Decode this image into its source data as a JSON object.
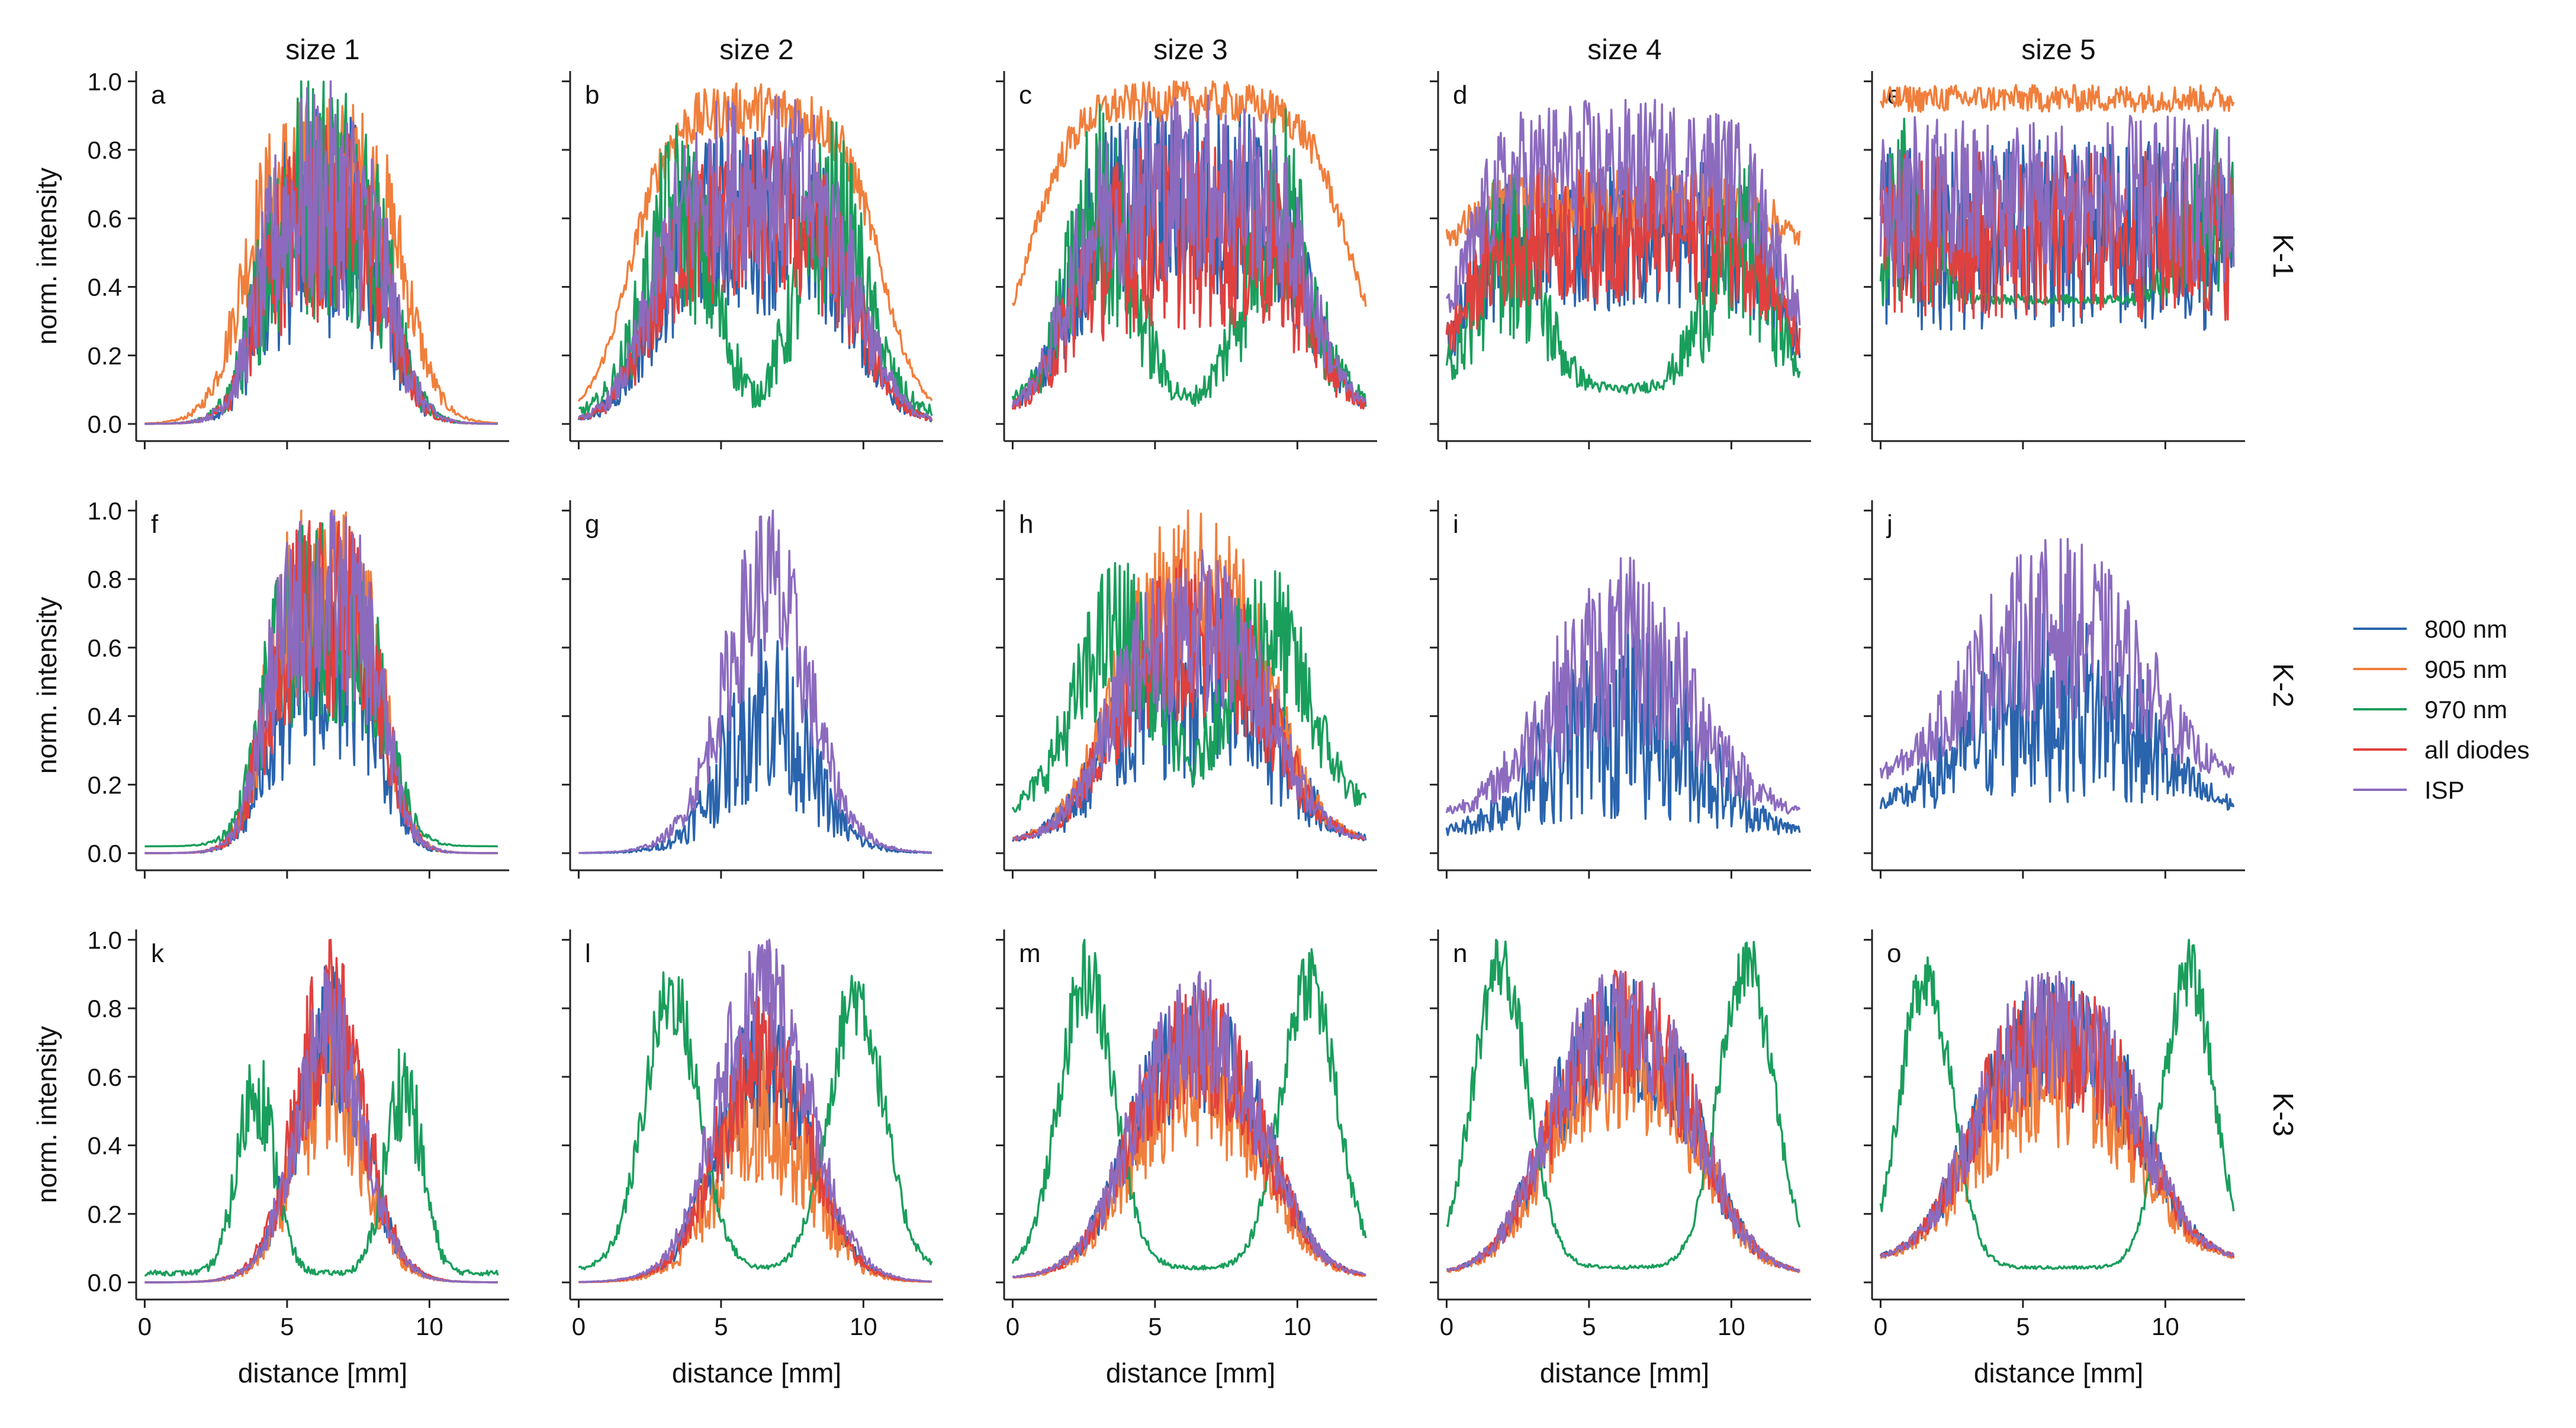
{
  "chart_data": {
    "type": "line",
    "layout": "3x5 grid of small multiples",
    "column_titles": [
      "size 1",
      "size 2",
      "size 3",
      "size 4",
      "size 5"
    ],
    "row_titles": [
      "K-1",
      "K-2",
      "K-3"
    ],
    "xlabel": "distance [mm]",
    "ylabel": "norm. intensity",
    "xlim": [
      -0.3,
      12.8
    ],
    "ylim": [
      -0.05,
      1.03
    ],
    "xticks": [
      0,
      5,
      10
    ],
    "yticks": [
      0.0,
      0.2,
      0.4,
      0.6,
      0.8,
      1.0
    ],
    "x_tick_labels": [
      "0",
      "5",
      "10"
    ],
    "y_tick_labels": [
      "0.0",
      "0.2",
      "0.4",
      "0.6",
      "0.8",
      "1.0"
    ],
    "legend_position": "right, middle",
    "series_legend": [
      {
        "name": "800 nm",
        "color": "#2a64ad"
      },
      {
        "name": "905 nm",
        "color": "#f07f3c"
      },
      {
        "name": "970 nm",
        "color": "#1a9e5c"
      },
      {
        "name": "all diodes",
        "color": "#e0413f"
      },
      {
        "name": "ISP",
        "color": "#8c6bbf"
      }
    ],
    "x_range_mm": [
      0,
      12.4
    ],
    "shape_parameter_names": [
      "series",
      "center_mm",
      "half_width_mm",
      "edge_width_mm",
      "peak",
      "baseline",
      "noise_amplitude",
      "x_start_mm",
      "x_end_mm"
    ],
    "panels": [
      {
        "letter": "a",
        "row": 0,
        "col": 0,
        "series": [
          [
            "800 nm",
            6.3,
            2.4,
            1.4,
            0.6,
            0.0,
            0.35,
            0,
            12.4
          ],
          [
            "905 nm",
            6.3,
            3.0,
            1.5,
            0.75,
            0.0,
            0.22,
            0,
            12.4
          ],
          [
            "970 nm",
            6.3,
            2.4,
            1.4,
            0.62,
            0.0,
            0.35,
            0,
            12.4
          ],
          [
            "all diodes",
            6.3,
            2.4,
            1.4,
            0.6,
            0.0,
            0.3,
            0,
            12.4
          ],
          [
            "ISP",
            6.3,
            2.4,
            1.4,
            0.68,
            0.0,
            0.35,
            0,
            12.4
          ]
        ]
      },
      {
        "letter": "b",
        "row": 0,
        "col": 1,
        "series": [
          [
            "800 nm",
            6.2,
            3.7,
            1.9,
            0.6,
            0.0,
            0.28,
            0,
            12.4
          ],
          [
            "905 nm",
            6.2,
            4.4,
            2.0,
            0.92,
            0.0,
            0.08,
            0,
            12.4
          ],
          [
            "970 nm",
            6.2,
            3.7,
            1.9,
            0.58,
            0.0,
            0.28,
            0,
            12.4
          ],
          [
            "all diodes",
            6.2,
            3.7,
            1.9,
            0.6,
            0.0,
            0.25,
            0,
            12.4
          ],
          [
            "ISP",
            6.2,
            3.7,
            1.9,
            0.7,
            0.0,
            0.28,
            0,
            12.4
          ]
        ]
      },
      {
        "letter": "c",
        "row": 0,
        "col": 2,
        "series": [
          [
            "800 nm",
            6.2,
            4.3,
            1.8,
            0.65,
            0.03,
            0.3,
            0,
            12.4
          ],
          [
            "905 nm",
            6.2,
            5.6,
            2.2,
            0.97,
            0.08,
            0.06,
            0,
            12.4
          ],
          [
            "970 nm",
            6.2,
            4.3,
            1.8,
            0.6,
            0.03,
            0.32,
            0,
            12.4
          ],
          [
            "all diodes",
            6.2,
            4.3,
            1.8,
            0.55,
            0.03,
            0.28,
            0,
            12.4
          ],
          [
            "ISP",
            6.2,
            4.3,
            1.8,
            0.7,
            0.03,
            0.28,
            0,
            12.4
          ]
        ]
      },
      {
        "letter": "d",
        "row": 0,
        "col": 3,
        "series": [
          [
            "800 nm",
            6.2,
            5.6,
            1.8,
            0.55,
            0.12,
            0.22,
            0,
            12.4
          ],
          [
            "905 nm",
            6.2,
            5.6,
            1.8,
            0.65,
            0.5,
            0.1,
            0,
            12.4
          ],
          [
            "970 nm",
            6.2,
            5.6,
            1.8,
            0.5,
            0.08,
            0.26,
            0,
            12.4
          ],
          [
            "all diodes",
            6.2,
            5.6,
            1.8,
            0.55,
            0.12,
            0.2,
            0,
            12.4
          ],
          [
            "ISP",
            6.2,
            5.6,
            1.8,
            0.75,
            0.15,
            0.2,
            0,
            12.4
          ]
        ]
      },
      {
        "letter": "e",
        "row": 0,
        "col": 4,
        "series": [
          [
            "800 nm",
            6.2,
            7.5,
            1.5,
            0.55,
            0.35,
            0.28,
            0,
            12.4
          ],
          [
            "905 nm",
            6.2,
            7.5,
            1.5,
            0.95,
            0.85,
            0.04,
            0,
            12.4
          ],
          [
            "970 nm",
            6.2,
            7.5,
            1.5,
            0.62,
            0.35,
            0.28,
            0,
            12.4
          ],
          [
            "all diodes",
            6.2,
            7.5,
            1.5,
            0.55,
            0.35,
            0.25,
            0,
            12.4
          ],
          [
            "ISP",
            6.2,
            7.5,
            1.5,
            0.65,
            0.35,
            0.25,
            0,
            12.4
          ]
        ]
      },
      {
        "letter": "f",
        "row": 1,
        "col": 0,
        "series": [
          [
            "800 nm",
            6.3,
            2.2,
            1.2,
            0.5,
            0.0,
            0.25,
            0,
            12.4
          ],
          [
            "905 nm",
            6.3,
            2.2,
            1.2,
            0.75,
            0.0,
            0.3,
            0,
            12.4
          ],
          [
            "970 nm",
            6.3,
            2.3,
            1.2,
            0.68,
            0.02,
            0.3,
            0,
            12.4
          ],
          [
            "all diodes",
            6.3,
            2.2,
            1.2,
            0.7,
            0.0,
            0.3,
            0,
            12.4
          ],
          [
            "ISP",
            6.3,
            2.2,
            1.2,
            0.75,
            0.0,
            0.3,
            0,
            12.4
          ]
        ]
      },
      {
        "letter": "g",
        "row": 1,
        "col": 1,
        "series": [
          [
            "800 nm",
            6.6,
            1.6,
            2.0,
            0.48,
            0.0,
            0.3,
            0,
            12.4
          ],
          [
            "ISP",
            6.6,
            1.6,
            2.0,
            0.75,
            0.0,
            0.25,
            0,
            12.4
          ]
        ]
      },
      {
        "letter": "h",
        "row": 1,
        "col": 2,
        "series": [
          [
            "800 nm",
            6.3,
            3.3,
            2.3,
            0.5,
            0.03,
            0.3,
            0,
            12.4
          ],
          [
            "905 nm",
            6.3,
            3.0,
            2.3,
            0.8,
            0.03,
            0.25,
            0,
            12.4
          ],
          [
            "970 nm",
            6.3,
            3.6,
            2.4,
            0.62,
            0.08,
            0.22,
            0,
            12.4
          ],
          [
            "all diodes",
            6.3,
            3.0,
            2.3,
            0.65,
            0.03,
            0.25,
            0,
            12.4
          ],
          [
            "ISP",
            6.3,
            3.0,
            2.3,
            0.68,
            0.03,
            0.25,
            0,
            12.4
          ]
        ]
      },
      {
        "letter": "i",
        "row": 1,
        "col": 3,
        "series": [
          [
            "800 nm",
            6.2,
            3.0,
            3.0,
            0.42,
            0.05,
            0.32,
            0,
            12.4
          ],
          [
            "ISP",
            6.2,
            3.0,
            3.0,
            0.62,
            0.1,
            0.3,
            0,
            12.4
          ]
        ]
      },
      {
        "letter": "j",
        "row": 1,
        "col": 4,
        "series": [
          [
            "800 nm",
            6.2,
            3.5,
            3.0,
            0.45,
            0.12,
            0.3,
            0,
            12.4
          ],
          [
            "ISP",
            6.2,
            3.5,
            3.0,
            0.68,
            0.2,
            0.28,
            0,
            12.4
          ]
        ]
      },
      {
        "letter": "k",
        "row": 2,
        "col": 0,
        "series": [
          [
            "800 nm",
            6.5,
            1.3,
            1.6,
            0.8,
            0.0,
            0.25,
            0,
            12.4
          ],
          [
            "905 nm",
            6.5,
            1.3,
            1.6,
            0.68,
            0.0,
            0.25,
            0,
            12.4
          ],
          [
            "970 nm",
            6.5,
            3.6,
            1.0,
            0.55,
            0.0,
            0.15,
            0,
            12.4
          ],
          [
            "all diodes",
            6.5,
            1.3,
            1.6,
            0.75,
            0.0,
            0.25,
            0,
            12.4
          ],
          [
            "ISP",
            6.5,
            1.3,
            1.6,
            0.82,
            0.0,
            0.22,
            0,
            12.4
          ]
        ]
      },
      {
        "letter": "l",
        "row": 2,
        "col": 1,
        "series": [
          [
            "800 nm",
            6.5,
            1.8,
            2.0,
            0.7,
            0.0,
            0.22,
            0,
            12.4
          ],
          [
            "905 nm",
            6.5,
            1.8,
            2.0,
            0.55,
            0.0,
            0.25,
            0,
            12.4
          ],
          [
            "970 nm",
            6.5,
            4.5,
            1.5,
            0.8,
            0.0,
            0.12,
            0,
            12.4
          ],
          [
            "all diodes",
            6.5,
            1.8,
            2.0,
            0.72,
            0.0,
            0.22,
            0,
            12.4
          ],
          [
            "ISP",
            6.5,
            1.8,
            2.0,
            0.8,
            0.0,
            0.2,
            0,
            12.4
          ]
        ]
      },
      {
        "letter": "m",
        "row": 2,
        "col": 2,
        "series": [
          [
            "800 nm",
            6.5,
            2.6,
            2.3,
            0.72,
            0.01,
            0.2,
            0,
            12.4
          ],
          [
            "905 nm",
            6.5,
            2.6,
            2.3,
            0.62,
            0.01,
            0.22,
            0,
            12.4
          ],
          [
            "970 nm",
            6.5,
            5.4,
            1.5,
            0.85,
            0.0,
            0.12,
            0,
            12.4
          ],
          [
            "all diodes",
            6.5,
            2.6,
            2.3,
            0.72,
            0.01,
            0.2,
            0,
            12.4
          ],
          [
            "ISP",
            6.5,
            2.6,
            2.3,
            0.75,
            0.01,
            0.2,
            0,
            12.4
          ]
        ]
      },
      {
        "letter": "n",
        "row": 2,
        "col": 3,
        "series": [
          [
            "800 nm",
            6.2,
            2.9,
            2.4,
            0.75,
            0.02,
            0.2,
            0,
            12.4
          ],
          [
            "905 nm",
            6.2,
            2.9,
            2.4,
            0.68,
            0.02,
            0.22,
            0,
            12.4
          ],
          [
            "970 nm",
            6.2,
            6.0,
            1.5,
            0.9,
            0.0,
            0.1,
            0,
            12.4
          ],
          [
            "all diodes",
            6.2,
            2.9,
            2.4,
            0.75,
            0.02,
            0.2,
            0,
            12.4
          ],
          [
            "ISP",
            6.2,
            2.9,
            2.4,
            0.77,
            0.02,
            0.2,
            0,
            12.4
          ]
        ]
      },
      {
        "letter": "o",
        "row": 2,
        "col": 4,
        "series": [
          [
            "800 nm",
            6.2,
            3.2,
            2.4,
            0.72,
            0.06,
            0.2,
            0,
            12.4
          ],
          [
            "905 nm",
            6.2,
            3.2,
            2.4,
            0.62,
            0.06,
            0.22,
            0,
            12.4
          ],
          [
            "970 nm",
            6.2,
            6.4,
            1.4,
            0.9,
            0.0,
            0.1,
            0,
            12.4
          ],
          [
            "all diodes",
            6.2,
            3.2,
            2.4,
            0.72,
            0.06,
            0.2,
            0,
            12.4
          ],
          [
            "ISP",
            6.2,
            3.2,
            2.4,
            0.75,
            0.06,
            0.2,
            0,
            12.4
          ]
        ]
      }
    ]
  }
}
